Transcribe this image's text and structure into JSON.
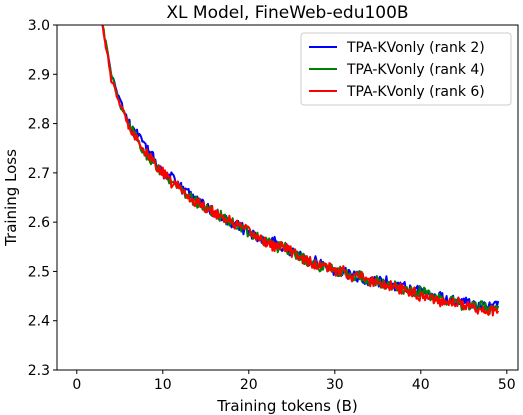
{
  "chart_data": {
    "type": "line",
    "title": "XL Model, FineWeb-edu100B",
    "xlabel": "Training tokens (B)",
    "ylabel": "Training Loss",
    "xlim": [
      -2.3,
      51.3
    ],
    "ylim": [
      2.3,
      3.0
    ],
    "xticks": [
      "0",
      "10",
      "20",
      "30",
      "40",
      "50"
    ],
    "yticks": [
      "2.3",
      "2.4",
      "2.5",
      "2.6",
      "2.7",
      "2.8",
      "2.9",
      "3.0"
    ],
    "grid": false,
    "legend_position": "top-right",
    "x": [
      3,
      4,
      5,
      6,
      7,
      8,
      9,
      10,
      11,
      12,
      13,
      14,
      15,
      16,
      17,
      18,
      19,
      20,
      21,
      22,
      23,
      24,
      25,
      26,
      27,
      28,
      29,
      30,
      31,
      32,
      33,
      34,
      35,
      36,
      37,
      38,
      39,
      40,
      41,
      42,
      43,
      44,
      45,
      46,
      47,
      48,
      49
    ],
    "series": [
      {
        "name": "TPA-KVonly (rank 2)",
        "color": "#0000ff",
        "values": [
          3.0,
          2.9,
          2.85,
          2.8,
          2.78,
          2.75,
          2.73,
          2.7,
          2.69,
          2.67,
          2.66,
          2.65,
          2.63,
          2.62,
          2.61,
          2.6,
          2.59,
          2.58,
          2.57,
          2.56,
          2.56,
          2.55,
          2.54,
          2.53,
          2.52,
          2.52,
          2.51,
          2.5,
          2.5,
          2.49,
          2.49,
          2.48,
          2.48,
          2.48,
          2.47,
          2.47,
          2.46,
          2.46,
          2.45,
          2.45,
          2.44,
          2.44,
          2.44,
          2.43,
          2.43,
          2.43,
          2.44
        ]
      },
      {
        "name": "TPA-KVonly (rank 4)",
        "color": "#008000",
        "values": [
          3.0,
          2.9,
          2.84,
          2.8,
          2.77,
          2.74,
          2.72,
          2.7,
          2.68,
          2.67,
          2.65,
          2.64,
          2.63,
          2.62,
          2.61,
          2.6,
          2.59,
          2.58,
          2.57,
          2.56,
          2.55,
          2.55,
          2.54,
          2.53,
          2.52,
          2.51,
          2.51,
          2.5,
          2.5,
          2.49,
          2.49,
          2.48,
          2.48,
          2.47,
          2.47,
          2.46,
          2.46,
          2.46,
          2.45,
          2.45,
          2.44,
          2.44,
          2.43,
          2.43,
          2.43,
          2.42,
          2.43
        ]
      },
      {
        "name": "TPA-KVonly (rank 6)",
        "color": "#ff0000",
        "values": [
          3.0,
          2.89,
          2.84,
          2.8,
          2.77,
          2.74,
          2.72,
          2.7,
          2.68,
          2.67,
          2.65,
          2.64,
          2.63,
          2.62,
          2.61,
          2.6,
          2.59,
          2.58,
          2.57,
          2.56,
          2.55,
          2.55,
          2.54,
          2.53,
          2.52,
          2.51,
          2.51,
          2.5,
          2.5,
          2.49,
          2.49,
          2.48,
          2.48,
          2.47,
          2.47,
          2.46,
          2.46,
          2.45,
          2.45,
          2.44,
          2.44,
          2.44,
          2.43,
          2.43,
          2.42,
          2.42,
          2.42
        ]
      }
    ]
  }
}
